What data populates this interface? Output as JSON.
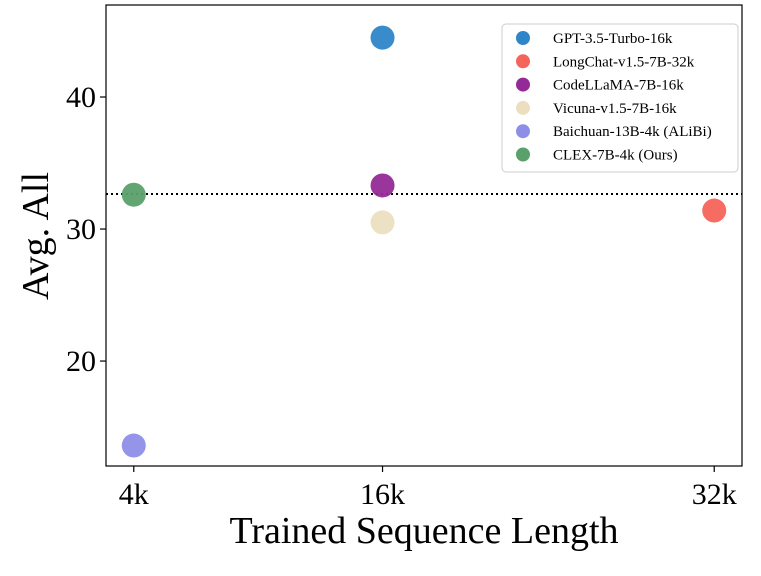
{
  "chart_data": {
    "type": "scatter",
    "xlabel": "Trained Sequence Length",
    "ylabel": "Avg. All",
    "xlim": [
      2.66,
      33.34
    ],
    "ylim": [
      12.05,
      46.97
    ],
    "x_ticks": [
      {
        "value": 4,
        "label": "4k"
      },
      {
        "value": 16,
        "label": "16k"
      },
      {
        "value": 32,
        "label": "32k"
      }
    ],
    "y_ticks": [
      {
        "value": 20,
        "label": "20"
      },
      {
        "value": 30,
        "label": "30"
      },
      {
        "value": 40,
        "label": "40"
      }
    ],
    "grid": false,
    "legend_position": "top-right",
    "reference_line": {
      "y": 32.65,
      "style": "dotted",
      "color": "#000000"
    },
    "series": [
      {
        "name": "GPT-3.5-Turbo-16k",
        "color": "#2e86c8",
        "x": 16,
        "y": 44.5
      },
      {
        "name": "LongChat-v1.5-7B-32k",
        "color": "#f5645a",
        "x": 32,
        "y": 31.4
      },
      {
        "name": "CodeLLaMA-7B-16k",
        "color": "#942a96",
        "x": 16,
        "y": 33.3
      },
      {
        "name": "Vicuna-v1.5-7B-16k",
        "color": "#ecdfc0",
        "x": 16,
        "y": 30.5
      },
      {
        "name": "Baichuan-13B-4k (ALiBi)",
        "color": "#8e8ee8",
        "x": 4,
        "y": 13.6
      },
      {
        "name": "CLEX-7B-4k (Ours)",
        "color": "#5aa06a",
        "x": 4,
        "y": 32.6
      }
    ]
  }
}
